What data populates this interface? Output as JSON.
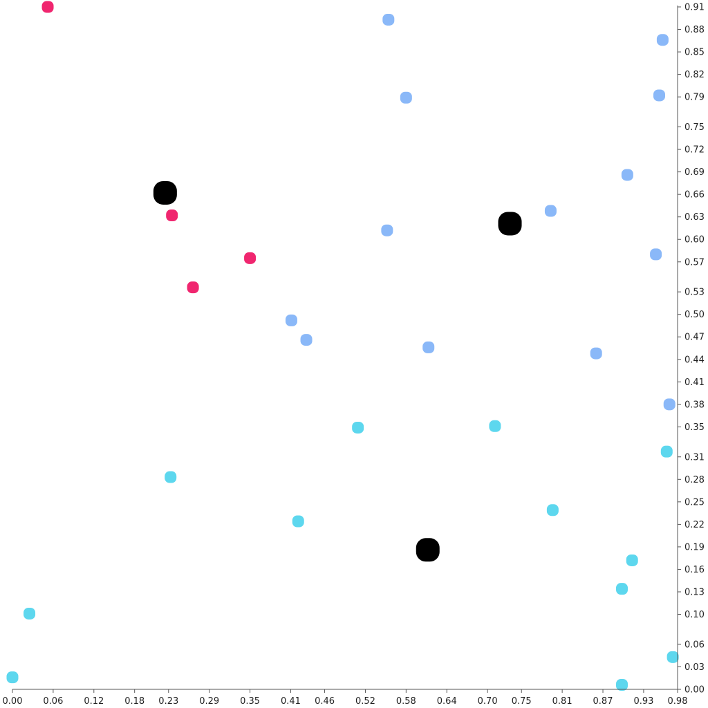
{
  "chart_data": {
    "type": "scatter",
    "title": "",
    "xlabel": "",
    "ylabel": "",
    "xlim": [
      0.0,
      0.98
    ],
    "ylim": [
      0.0,
      0.91
    ],
    "grid": false,
    "legend": "none",
    "x_ticks": [
      "0.00",
      "0.06",
      "0.12",
      "0.18",
      "0.23",
      "0.29",
      "0.35",
      "0.41",
      "0.46",
      "0.52",
      "0.58",
      "0.64",
      "0.70",
      "0.75",
      "0.81",
      "0.87",
      "0.93",
      "0.98"
    ],
    "y_ticks": [
      "0.00",
      "0.03",
      "0.06",
      "0.10",
      "0.13",
      "0.16",
      "0.19",
      "0.22",
      "0.25",
      "0.28",
      "0.31",
      "0.35",
      "0.38",
      "0.41",
      "0.44",
      "0.47",
      "0.50",
      "0.53",
      "0.57",
      "0.60",
      "0.63",
      "0.66",
      "0.69",
      "0.72",
      "0.75",
      "0.79",
      "0.82",
      "0.85",
      "0.88",
      "0.91"
    ],
    "series": [
      {
        "color": "#f0266f",
        "points": [
          [
            0.052,
            0.91
          ],
          [
            0.235,
            0.632
          ],
          [
            0.35,
            0.575
          ],
          [
            0.266,
            0.536
          ]
        ]
      },
      {
        "color": "#8ab8f8",
        "points": [
          [
            0.554,
            0.893
          ],
          [
            0.958,
            0.866
          ],
          [
            0.58,
            0.789
          ],
          [
            0.953,
            0.792
          ],
          [
            0.906,
            0.686
          ],
          [
            0.793,
            0.638
          ],
          [
            0.552,
            0.612
          ],
          [
            0.948,
            0.58
          ],
          [
            0.411,
            0.492
          ],
          [
            0.433,
            0.466
          ],
          [
            0.613,
            0.456
          ],
          [
            0.86,
            0.448
          ],
          [
            0.968,
            0.38
          ]
        ]
      },
      {
        "color": "#5dd7ee",
        "points": [
          [
            0.509,
            0.349
          ],
          [
            0.711,
            0.351
          ],
          [
            0.964,
            0.317
          ],
          [
            0.233,
            0.283
          ],
          [
            0.421,
            0.224
          ],
          [
            0.796,
            0.239
          ],
          [
            0.913,
            0.172
          ],
          [
            0.898,
            0.134
          ],
          [
            0.025,
            0.101
          ],
          [
            0.0,
            0.016
          ],
          [
            0.973,
            0.043
          ],
          [
            0.898,
            0.006
          ]
        ]
      },
      {
        "color": "#000000",
        "marker": "large",
        "points": [
          [
            0.225,
            0.662
          ],
          [
            0.733,
            0.621
          ],
          [
            0.612,
            0.186
          ]
        ]
      }
    ]
  }
}
